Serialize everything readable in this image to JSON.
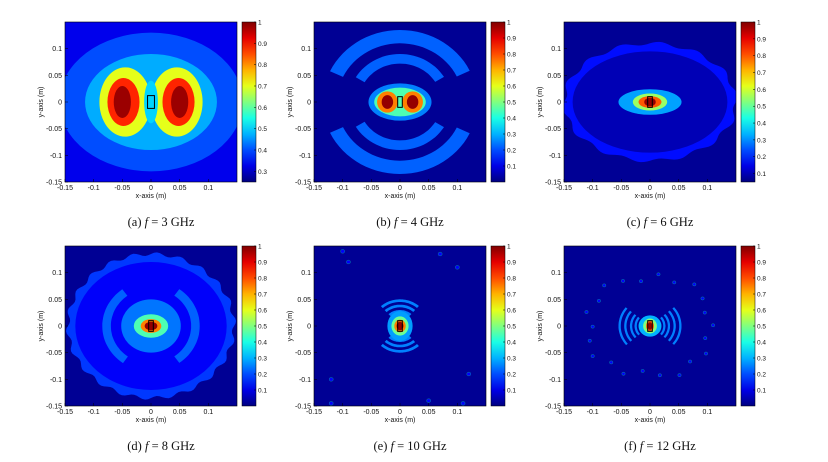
{
  "chart_data": [
    {
      "type": "heatmap",
      "caption_prefix": "(a)",
      "caption_var": "f",
      "caption_eq": "= 3 GHz",
      "freq_ghz": 3,
      "xlabel": "x-axis (m)",
      "ylabel": "y-axis (m)",
      "xlim": [
        -0.15,
        0.15
      ],
      "ylim": [
        -0.15,
        0.15
      ],
      "xticks": [
        "-0.15",
        "-0.1",
        "-0.05",
        "0",
        "0.05",
        "0.1"
      ],
      "yticks": [
        "0.1",
        "0.05",
        "0",
        "-0.05",
        "-0.1",
        "-0.15"
      ],
      "colorbar": {
        "min": 0.25,
        "max": 1,
        "ticks": [
          "1",
          "0.9",
          "0.8",
          "0.7",
          "0.6",
          "0.5",
          "0.4",
          "0.3"
        ]
      }
    },
    {
      "type": "heatmap",
      "caption_prefix": "(b)",
      "caption_var": "f",
      "caption_eq": "= 4 GHz",
      "freq_ghz": 4,
      "xlabel": "x-axis (m)",
      "ylabel": "y-axis (m)",
      "xlim": [
        -0.15,
        0.15
      ],
      "ylim": [
        -0.15,
        0.15
      ],
      "xticks": [
        "-0.15",
        "-0.1",
        "-0.05",
        "0",
        "0.05",
        "0.1"
      ],
      "yticks": [
        "0.1",
        "0.05",
        "0",
        "-0.05",
        "-0.1",
        "-0.15"
      ],
      "colorbar": {
        "min": 0,
        "max": 1,
        "ticks": [
          "1",
          "0.9",
          "0.8",
          "0.7",
          "0.6",
          "0.5",
          "0.4",
          "0.3",
          "0.2",
          "0.1"
        ]
      }
    },
    {
      "type": "heatmap",
      "caption_prefix": "(c)",
      "caption_var": "f",
      "caption_eq": "= 6 GHz",
      "freq_ghz": 6,
      "xlabel": "x-axis (m)",
      "ylabel": "y-axis (m)",
      "xlim": [
        -0.15,
        0.15
      ],
      "ylim": [
        -0.15,
        0.15
      ],
      "xticks": [
        "-0.15",
        "-0.1",
        "-0.05",
        "0",
        "0.05",
        "0.1"
      ],
      "yticks": [
        "0.1",
        "0.05",
        "0",
        "-0.05",
        "-0.1",
        "-0.15"
      ],
      "colorbar": {
        "min": 0.05,
        "max": 1,
        "ticks": [
          "1",
          "0.9",
          "0.8",
          "0.7",
          "0.6",
          "0.5",
          "0.4",
          "0.3",
          "0.2",
          "0.1"
        ]
      }
    },
    {
      "type": "heatmap",
      "caption_prefix": "(d)",
      "caption_var": "f",
      "caption_eq": "= 8 GHz",
      "freq_ghz": 8,
      "xlabel": "x-axis (m)",
      "ylabel": "y-axis (m)",
      "xlim": [
        -0.15,
        0.15
      ],
      "ylim": [
        -0.15,
        0.15
      ],
      "xticks": [
        "-0.15",
        "-0.1",
        "-0.05",
        "0",
        "0.05",
        "0.1"
      ],
      "yticks": [
        "0.1",
        "0.05",
        "0",
        "-0.05",
        "-0.1",
        "-0.15"
      ],
      "colorbar": {
        "min": 0,
        "max": 1,
        "ticks": [
          "1",
          "0.9",
          "0.8",
          "0.7",
          "0.6",
          "0.5",
          "0.4",
          "0.3",
          "0.2",
          "0.1"
        ]
      }
    },
    {
      "type": "heatmap",
      "caption_prefix": "(e)",
      "caption_var": "f",
      "caption_eq": "= 10 GHz",
      "freq_ghz": 10,
      "xlabel": "x-axis (m)",
      "ylabel": "y-axis (m)",
      "xlim": [
        -0.15,
        0.15
      ],
      "ylim": [
        -0.15,
        0.15
      ],
      "xticks": [
        "-0.15",
        "-0.1",
        "-0.05",
        "0",
        "0.05",
        "0.1"
      ],
      "yticks": [
        "0.1",
        "0.05",
        "0",
        "-0.05",
        "-0.1",
        "-0.15"
      ],
      "colorbar": {
        "min": 0,
        "max": 1,
        "ticks": [
          "1",
          "0.9",
          "0.8",
          "0.7",
          "0.6",
          "0.5",
          "0.4",
          "0.3",
          "0.2",
          "0.1"
        ]
      }
    },
    {
      "type": "heatmap",
      "caption_prefix": "(f)",
      "caption_var": "f",
      "caption_eq": "= 12 GHz",
      "freq_ghz": 12,
      "xlabel": "x-axis (m)",
      "ylabel": "y-axis (m)",
      "xlim": [
        -0.15,
        0.15
      ],
      "ylim": [
        -0.15,
        0.15
      ],
      "xticks": [
        "-0.15",
        "-0.1",
        "-0.05",
        "0",
        "0.05",
        "0.1"
      ],
      "yticks": [
        "0.1",
        "0.05",
        "0",
        "-0.05",
        "-0.1",
        "-0.15"
      ],
      "colorbar": {
        "min": 0,
        "max": 1,
        "ticks": [
          "1",
          "0.9",
          "0.8",
          "0.7",
          "0.6",
          "0.5",
          "0.4",
          "0.3",
          "0.2",
          "0.1"
        ]
      }
    }
  ]
}
